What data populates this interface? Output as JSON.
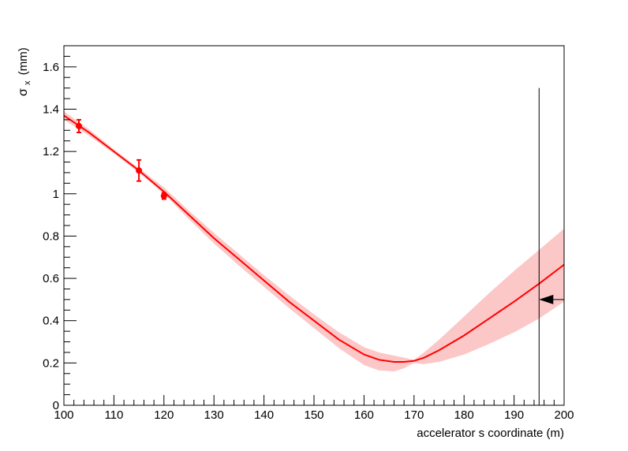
{
  "chart_data": {
    "type": "line",
    "title": "",
    "xlabel": "accelerator s coordinate (m)",
    "ylabel": "σ",
    "ylabel_sub": "x",
    "ylabel_unit": "(mm)",
    "xlim": [
      100,
      200
    ],
    "ylim": [
      0,
      1.7
    ],
    "grid": false,
    "x_ticks": [
      100,
      110,
      120,
      130,
      140,
      150,
      160,
      170,
      180,
      190,
      200
    ],
    "x_tick_labels": [
      "100",
      "110",
      "120",
      "130",
      "140",
      "150",
      "160",
      "170",
      "180",
      "190",
      "200"
    ],
    "y_ticks": [
      0,
      0.2,
      0.4,
      0.6,
      0.8,
      1.0,
      1.2,
      1.4,
      1.6
    ],
    "y_tick_labels": [
      "0",
      "0.2",
      "0.4",
      "0.6",
      "0.8",
      "1",
      "1.2",
      "1.4",
      "1.6"
    ],
    "colors": {
      "fit": "#ff0000",
      "band": "#fcc7c7",
      "points": "#ff0000",
      "marker": "#000000"
    },
    "fit_curve": {
      "x": [
        100,
        105,
        110,
        115,
        120,
        125,
        130,
        135,
        140,
        145,
        150,
        155,
        160,
        163,
        166,
        168,
        170,
        172,
        175,
        180,
        185,
        190,
        195,
        200
      ],
      "y": [
        1.37,
        1.29,
        1.2,
        1.11,
        1.01,
        0.9,
        0.79,
        0.69,
        0.59,
        0.49,
        0.4,
        0.31,
        0.24,
        0.215,
        0.205,
        0.205,
        0.21,
        0.225,
        0.26,
        0.33,
        0.41,
        0.49,
        0.575,
        0.665
      ]
    },
    "band": {
      "x": [
        100,
        105,
        110,
        115,
        120,
        125,
        130,
        135,
        140,
        145,
        150,
        155,
        160,
        163,
        166,
        168,
        170,
        172,
        175,
        180,
        185,
        190,
        195,
        200
      ],
      "lower": [
        1.35,
        1.275,
        1.19,
        1.1,
        1.0,
        0.88,
        0.765,
        0.66,
        0.56,
        0.46,
        0.365,
        0.27,
        0.19,
        0.165,
        0.16,
        0.175,
        0.2,
        0.195,
        0.205,
        0.24,
        0.29,
        0.345,
        0.41,
        0.49
      ],
      "upper": [
        1.39,
        1.305,
        1.21,
        1.12,
        1.03,
        0.92,
        0.815,
        0.715,
        0.615,
        0.52,
        0.43,
        0.345,
        0.275,
        0.25,
        0.235,
        0.225,
        0.215,
        0.25,
        0.31,
        0.42,
        0.53,
        0.635,
        0.735,
        0.835
      ]
    },
    "points": [
      {
        "x": 103,
        "y": 1.32,
        "err": 0.03
      },
      {
        "x": 115,
        "y": 1.11,
        "err": 0.05
      },
      {
        "x": 120,
        "y": 0.99,
        "err": 0.015
      }
    ],
    "marker": {
      "x": 195,
      "y_top": 1.5,
      "arrow_y": 0.5,
      "arrow_from_x": 200
    }
  }
}
